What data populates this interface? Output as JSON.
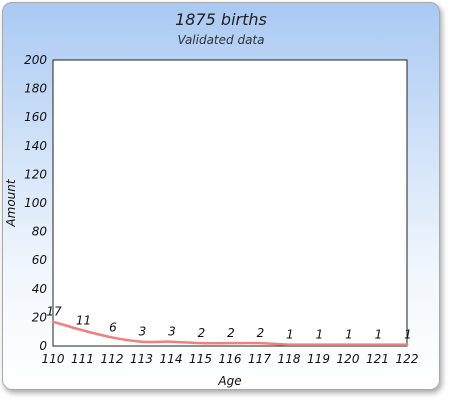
{
  "chart_data": {
    "type": "line",
    "title": "1875 births",
    "subtitle": "Validated data",
    "xlabel": "Age",
    "ylabel": "Amount",
    "x": [
      110,
      111,
      112,
      113,
      114,
      115,
      116,
      117,
      118,
      119,
      120,
      121,
      122
    ],
    "series": [
      {
        "values": [
          17,
          11,
          6,
          3,
          3,
          2,
          2,
          2,
          1,
          1,
          1,
          1,
          1
        ],
        "color": "#f08080"
      }
    ],
    "ylim": [
      0,
      200
    ],
    "yticks": [
      0,
      20,
      40,
      60,
      80,
      100,
      120,
      140,
      160,
      180,
      200
    ],
    "xlim": [
      110,
      122
    ],
    "grid": false,
    "legend": "none",
    "plot_background": "#ffffff"
  }
}
